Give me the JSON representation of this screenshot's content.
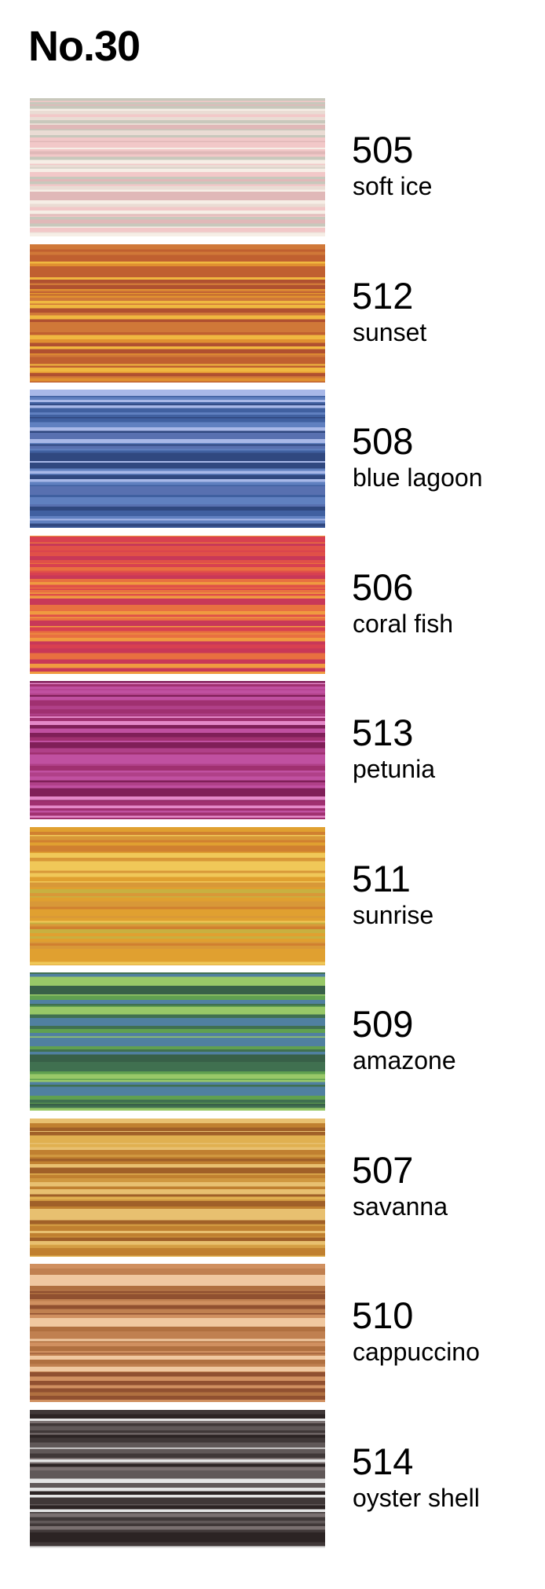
{
  "title": "No.30",
  "items": [
    {
      "code": "505",
      "name": "soft ice"
    },
    {
      "code": "512",
      "name": "sunset"
    },
    {
      "code": "508",
      "name": "blue lagoon"
    },
    {
      "code": "506",
      "name": "coral fish"
    },
    {
      "code": "513",
      "name": "petunia"
    },
    {
      "code": "511",
      "name": "sunrise"
    },
    {
      "code": "509",
      "name": "amazone"
    },
    {
      "code": "507",
      "name": "savanna"
    },
    {
      "code": "510",
      "name": "cappuccino"
    },
    {
      "code": "514",
      "name": "oyster shell"
    }
  ]
}
